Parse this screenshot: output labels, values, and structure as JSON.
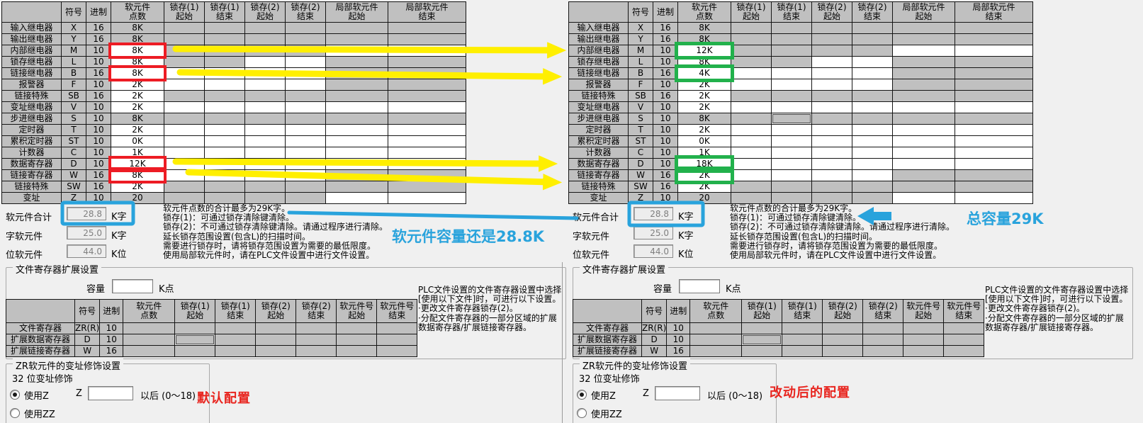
{
  "colors": {
    "window_bg": "#f0f0f0",
    "cell_gray": "#c0c0c0",
    "highlight_red": "#ed1c24",
    "highlight_green": "#22b14c",
    "arrow_yellow": "#fff200",
    "annotation_blue": "#29a3dc",
    "caption_red": "#e8251f"
  },
  "annotations": {
    "left_caption": "默认配置",
    "right_caption": "改动后的配置",
    "left_blue_caption": "软元件容量还是28.8K",
    "right_blue_caption": "总容量29K"
  },
  "dialog": {
    "device_table": {
      "headers": [
        "",
        "符号",
        "进制",
        "软元件\n点数",
        "锁存(1)\n起始",
        "锁存(1)\n结束",
        "锁存(2)\n起始",
        "锁存(2)\n结束",
        "局部软元件\n起始",
        "局部软元件\n结束"
      ],
      "rows": [
        {
          "label": "输入继电器",
          "symbol": "X",
          "base": "16",
          "points": {
            "left": "8K",
            "right": "8K"
          },
          "points_gray": true,
          "latch": [
            0,
            0,
            0,
            0
          ],
          "local": [
            0,
            0
          ],
          "highlight": false
        },
        {
          "label": "输出继电器",
          "symbol": "Y",
          "base": "16",
          "points": {
            "left": "8K",
            "right": "8K"
          },
          "points_gray": true,
          "latch": [
            0,
            0,
            0,
            0
          ],
          "local": [
            0,
            0
          ],
          "highlight": false
        },
        {
          "label": "内部继电器",
          "symbol": "M",
          "base": "10",
          "points": {
            "left": "8K",
            "right": "12K"
          },
          "points_gray": false,
          "latch": [
            0,
            0,
            0,
            0
          ],
          "local": [
            1,
            1
          ],
          "highlight": true
        },
        {
          "label": "锁存继电器",
          "symbol": "L",
          "base": "10",
          "points": {
            "left": "8K",
            "right": "8K"
          },
          "points_gray": false,
          "latch": [
            0,
            0,
            1,
            1
          ],
          "local": [
            0,
            0
          ],
          "highlight": false
        },
        {
          "label": "链接继电器",
          "symbol": "B",
          "base": "16",
          "points": {
            "left": "8K",
            "right": "4K"
          },
          "points_gray": false,
          "latch": [
            1,
            1,
            1,
            1
          ],
          "local": [
            0,
            0
          ],
          "highlight": true
        },
        {
          "label": "报警器",
          "symbol": "F",
          "base": "10",
          "points": {
            "left": "2K",
            "right": "2K"
          },
          "points_gray": false,
          "latch": [
            1,
            1,
            1,
            1
          ],
          "local": [
            0,
            0
          ],
          "highlight": false
        },
        {
          "label": "链接特殊",
          "symbol": "SB",
          "base": "16",
          "points": {
            "left": "2K",
            "right": "2K"
          },
          "points_gray": false,
          "latch": [
            0,
            0,
            0,
            0
          ],
          "local": [
            0,
            0
          ],
          "highlight": false
        },
        {
          "label": "变址继电器",
          "symbol": "V",
          "base": "10",
          "points": {
            "left": "2K",
            "right": "2K"
          },
          "points_gray": false,
          "latch": [
            1,
            1,
            1,
            1
          ],
          "local": [
            1,
            1
          ],
          "highlight": false
        },
        {
          "label": "步进继电器",
          "symbol": "S",
          "base": "10",
          "points": {
            "left": "8K",
            "right": "8K"
          },
          "points_gray": true,
          "latch": [
            0,
            0,
            0,
            0
          ],
          "local": [
            0,
            0
          ],
          "highlight": false,
          "focus_right_latch_col": 1
        },
        {
          "label": "定时器",
          "symbol": "T",
          "base": "10",
          "points": {
            "left": "2K",
            "right": "2K"
          },
          "points_gray": false,
          "latch": [
            1,
            1,
            1,
            1
          ],
          "local": [
            1,
            1
          ],
          "highlight": false
        },
        {
          "label": "累积定时器",
          "symbol": "ST",
          "base": "10",
          "points": {
            "left": "0K",
            "right": "0K"
          },
          "points_gray": false,
          "latch": [
            1,
            1,
            1,
            1
          ],
          "local": [
            1,
            1
          ],
          "highlight": false
        },
        {
          "label": "计数器",
          "symbol": "C",
          "base": "10",
          "points": {
            "left": "1K",
            "right": "1K"
          },
          "points_gray": false,
          "latch": [
            1,
            1,
            1,
            1
          ],
          "local": [
            1,
            1
          ],
          "highlight": false
        },
        {
          "label": "数据寄存器",
          "symbol": "D",
          "base": "10",
          "points": {
            "left": "12K",
            "right": "18K"
          },
          "points_gray": false,
          "latch": [
            1,
            1,
            1,
            1
          ],
          "local": [
            1,
            1
          ],
          "highlight": true
        },
        {
          "label": "链接寄存器",
          "symbol": "W",
          "base": "16",
          "points": {
            "left": "8K",
            "right": "2K"
          },
          "points_gray": false,
          "latch": [
            1,
            1,
            1,
            1
          ],
          "local": [
            0,
            0
          ],
          "highlight": true
        },
        {
          "label": "链接特殊",
          "symbol": "SW",
          "base": "16",
          "points": {
            "left": "2K",
            "right": "2K"
          },
          "points_gray": false,
          "latch": [
            0,
            0,
            0,
            0
          ],
          "local": [
            0,
            0
          ],
          "highlight": false
        },
        {
          "label": "变址",
          "symbol": "Z",
          "base": "10",
          "points": {
            "left": "20",
            "right": "20"
          },
          "points_gray": true,
          "latch": [
            0,
            0,
            0,
            0
          ],
          "local": [
            1,
            1
          ],
          "highlight": false
        }
      ]
    },
    "summary": {
      "rows": [
        {
          "label": "软元件合计",
          "value": "28.8",
          "unit": "K字"
        },
        {
          "label": "字软元件",
          "value": "25.0",
          "unit": "K字"
        },
        {
          "label": "位软元件",
          "value": "44.0",
          "unit": "K位"
        }
      ]
    },
    "notes_text": "软元件点数的合计最多为29K字。\n锁存(1)：可通过锁存清除键清除。\n锁存(2)：不可通过锁存清除键清除。请通过程序进行清除。\n延长锁存范围设置(包含L)的扫描时间。\n需要进行锁存时，请将锁存范围设置为需要的最低限度。\n使用局部软元件时，请在PLC文件设置中进行文件设置。",
    "file_register": {
      "title": "文件寄存器扩展设置",
      "capacity_label": "容量",
      "capacity_value": "",
      "capacity_unit": "K点",
      "headers": [
        "",
        "符号",
        "进制",
        "软元件\n点数",
        "锁存(1)\n起始",
        "锁存(1)\n结束",
        "锁存(2)\n起始",
        "锁存(2)\n结束",
        "软元件号\n起始",
        "软元件号\n结束"
      ],
      "rows": [
        {
          "label": "文件寄存器",
          "symbol": "ZR(R)",
          "base": "10",
          "focus": false
        },
        {
          "label": "扩展数据寄存器",
          "symbol": "D",
          "base": "10",
          "focus": true
        },
        {
          "label": "扩展链接寄存器",
          "symbol": "W",
          "base": "16",
          "focus": false
        }
      ],
      "side_note_text": "PLC文件设置的文件寄存器设置中选择\n[使用以下文件]时，可进行以下设置。\n·更改文件寄存器锁存(2)。\n·分配文件寄存器的一部分区域的扩展\n数据寄存器/扩展链接寄存器。"
    },
    "zr": {
      "title": "ZR软元件的变址修饰设置",
      "sub": "32 位变址修饰",
      "radio1": "使用Z",
      "z_label": "Z",
      "z_value": "",
      "after": "以后 (0～18)",
      "radio2": "使用ZZ"
    }
  }
}
